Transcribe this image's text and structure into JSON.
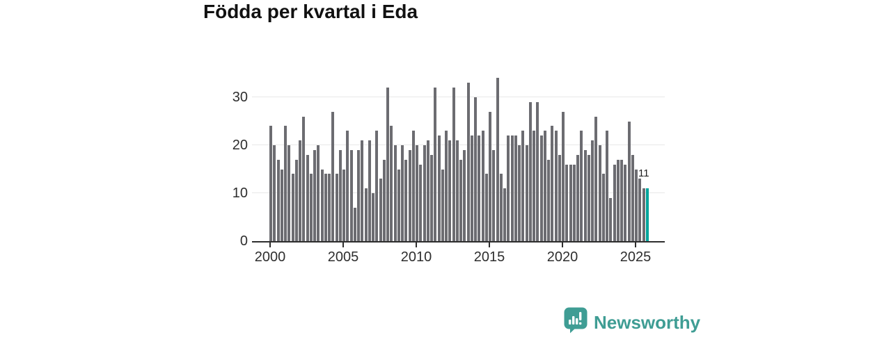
{
  "title": "Födda per kvartal i Eda",
  "annotation": {
    "last_value_label": "11"
  },
  "branding": {
    "logo_text": "Newsworthy",
    "logo_icon": "bar-chart-speech-bubble-icon"
  },
  "colors": {
    "bar": "#6c6c71",
    "highlight": "#00a59c",
    "gridline": "#e8e8e8",
    "axis": "#2d2d2d",
    "text": "#2e2e2e",
    "title": "#111111",
    "logo": "#3f9d94"
  },
  "chart_data": {
    "type": "bar",
    "title": "Födda per kvartal i Eda",
    "frequency": "quarterly",
    "start_period": "2000 Q1",
    "end_period": "2025 Q4",
    "xtick_labels": [
      "2000",
      "2005",
      "2010",
      "2015",
      "2020",
      "2025"
    ],
    "ytick_labels": [
      "0",
      "10",
      "20",
      "30"
    ],
    "ytick_values": [
      0,
      10,
      20,
      30
    ],
    "ylim": [
      0,
      34
    ],
    "grid": "horizontal",
    "legend": "none",
    "highlight_index": 103,
    "highlight_value": 11,
    "series": [
      {
        "name": "Födda per kvartal",
        "values": [
          24,
          20,
          17,
          15,
          24,
          20,
          14,
          17,
          21,
          26,
          18,
          14,
          19,
          20,
          15,
          14,
          14,
          27,
          14,
          19,
          15,
          23,
          19,
          7,
          19,
          21,
          11,
          21,
          10,
          23,
          13,
          17,
          32,
          24,
          20,
          15,
          20,
          17,
          19,
          23,
          20,
          16,
          20,
          21,
          18,
          32,
          22,
          15,
          23,
          21,
          32,
          21,
          17,
          19,
          33,
          22,
          30,
          22,
          23,
          14,
          27,
          19,
          34,
          14,
          11,
          22,
          22,
          22,
          20,
          23,
          20,
          29,
          23,
          29,
          22,
          23,
          17,
          24,
          23,
          18,
          27,
          16,
          16,
          16,
          18,
          23,
          19,
          18,
          21,
          26,
          20,
          14,
          23,
          9,
          16,
          17,
          17,
          16,
          25,
          18,
          15,
          13,
          11,
          11
        ]
      }
    ]
  }
}
